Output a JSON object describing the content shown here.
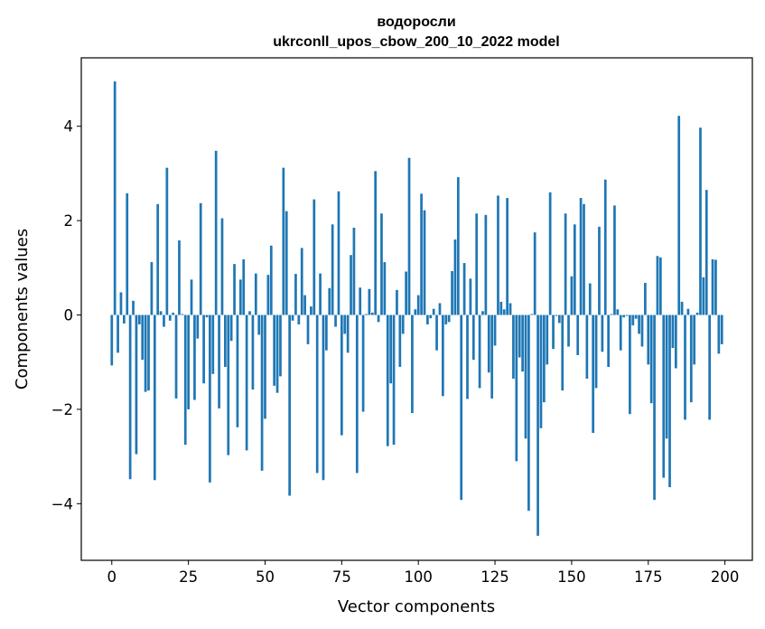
{
  "chart_data": {
    "type": "bar",
    "title_line1": "водоросли",
    "title_line2": "ukrconll_upos_cbow_200_10_2022 model",
    "xlabel": "Vector components",
    "ylabel": "Components values",
    "xlim": [
      -9.95,
      208.95
    ],
    "ylim": [
      -5.2,
      5.45
    ],
    "xticks": [
      0,
      25,
      50,
      75,
      100,
      125,
      150,
      175,
      200
    ],
    "yticks": [
      -4,
      -2,
      0,
      2,
      4
    ],
    "bar_color": "#1f77b4",
    "x": [
      0,
      1,
      2,
      3,
      4,
      5,
      6,
      7,
      8,
      9,
      10,
      11,
      12,
      13,
      14,
      15,
      16,
      17,
      18,
      19,
      20,
      21,
      22,
      23,
      24,
      25,
      26,
      27,
      28,
      29,
      30,
      31,
      32,
      33,
      34,
      35,
      36,
      37,
      38,
      39,
      40,
      41,
      42,
      43,
      44,
      45,
      46,
      47,
      48,
      49,
      50,
      51,
      52,
      53,
      54,
      55,
      56,
      57,
      58,
      59,
      60,
      61,
      62,
      63,
      64,
      65,
      66,
      67,
      68,
      69,
      70,
      71,
      72,
      73,
      74,
      75,
      76,
      77,
      78,
      79,
      80,
      81,
      82,
      83,
      84,
      85,
      86,
      87,
      88,
      89,
      90,
      91,
      92,
      93,
      94,
      95,
      96,
      97,
      98,
      99,
      100,
      101,
      102,
      103,
      104,
      105,
      106,
      107,
      108,
      109,
      110,
      111,
      112,
      113,
      114,
      115,
      116,
      117,
      118,
      119,
      120,
      121,
      122,
      123,
      124,
      125,
      126,
      127,
      128,
      129,
      130,
      131,
      132,
      133,
      134,
      135,
      136,
      137,
      138,
      139,
      140,
      141,
      142,
      143,
      144,
      145,
      146,
      147,
      148,
      149,
      150,
      151,
      152,
      153,
      154,
      155,
      156,
      157,
      158,
      159,
      160,
      161,
      162,
      163,
      164,
      165,
      166,
      167,
      168,
      169,
      170,
      171,
      172,
      173,
      174,
      175,
      176,
      177,
      178,
      179,
      180,
      181,
      182,
      183,
      184,
      185,
      186,
      187,
      188,
      189,
      190,
      191,
      192,
      193,
      194,
      195,
      196,
      197,
      198,
      199
    ],
    "values": [
      -1.07,
      4.95,
      -0.8,
      0.48,
      -0.18,
      2.58,
      -3.48,
      0.3,
      -2.95,
      -0.2,
      -0.95,
      -1.63,
      -1.6,
      1.12,
      -3.5,
      2.35,
      0.08,
      -0.25,
      3.12,
      -0.12,
      0.05,
      -1.77,
      1.58,
      0.02,
      -2.75,
      -2.0,
      0.75,
      -1.8,
      -0.5,
      2.37,
      -1.45,
      -0.05,
      -3.55,
      -1.25,
      3.48,
      -1.98,
      2.05,
      -1.1,
      -2.97,
      -0.55,
      1.08,
      -2.38,
      0.75,
      1.18,
      -2.87,
      0.08,
      -1.58,
      0.88,
      -0.42,
      -3.3,
      -2.2,
      0.85,
      1.47,
      -1.5,
      -1.65,
      -1.3,
      3.12,
      2.2,
      -3.83,
      -0.12,
      0.87,
      -0.2,
      1.42,
      0.42,
      -0.62,
      0.18,
      2.45,
      -3.35,
      0.88,
      -3.5,
      -0.75,
      0.57,
      1.92,
      -0.25,
      2.62,
      -2.55,
      -0.4,
      -0.8,
      1.27,
      1.85,
      -3.35,
      0.58,
      -2.05,
      0.02,
      0.55,
      0.05,
      3.05,
      -0.15,
      2.15,
      1.12,
      -2.78,
      -1.45,
      -2.75,
      0.53,
      -1.1,
      -0.4,
      0.92,
      3.33,
      -2.08,
      0.12,
      0.42,
      2.57,
      2.22,
      -0.2,
      -0.07,
      0.13,
      -0.75,
      0.25,
      -1.72,
      -0.2,
      -0.15,
      0.93,
      1.6,
      2.92,
      -3.92,
      1.1,
      -1.78,
      0.77,
      -0.95,
      2.15,
      -1.55,
      0.08,
      2.12,
      -1.22,
      -1.77,
      -0.65,
      2.53,
      0.28,
      0.12,
      2.48,
      0.25,
      -1.35,
      -3.1,
      -0.9,
      -1.2,
      -2.62,
      -4.15,
      0.02,
      1.75,
      -4.68,
      -2.4,
      -1.85,
      -1.05,
      2.6,
      -0.72,
      -0.02,
      -0.17,
      -1.6,
      2.15,
      -0.67,
      0.82,
      1.92,
      -0.85,
      2.48,
      2.35,
      -1.35,
      0.67,
      -2.5,
      -1.55,
      1.87,
      -0.78,
      2.87,
      -1.1,
      0.02,
      2.32,
      0.12,
      -0.75,
      -0.05,
      -0.02,
      -2.1,
      -0.22,
      -0.08,
      -0.4,
      -0.67,
      0.68,
      -1.05,
      -1.87,
      -3.92,
      1.25,
      1.22,
      -3.45,
      -2.62,
      -3.65,
      -0.7,
      -1.13,
      4.22,
      0.28,
      -2.22,
      0.13,
      -1.85,
      -1.05,
      0.05,
      3.97,
      0.8,
      2.65,
      -2.22,
      1.18,
      1.17,
      -0.82,
      -0.62
    ]
  }
}
